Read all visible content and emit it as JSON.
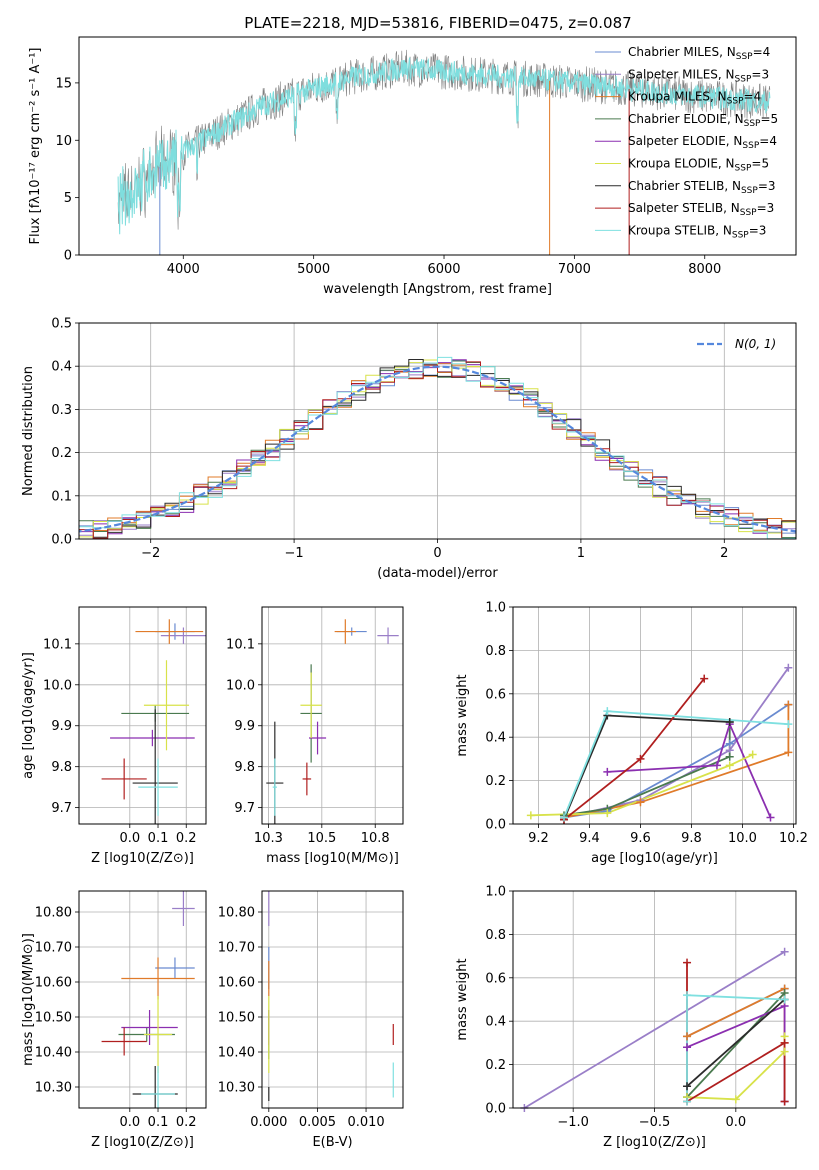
{
  "figure": {
    "title": "PLATE=2218, MJD=53816, FIBERID=0475, z=0.087"
  },
  "colors": {
    "series": [
      "#6a8bd0",
      "#9a7fc8",
      "#e07b2a",
      "#4a7a4f",
      "#8b2fb0",
      "#d8e24a",
      "#2b2b2b",
      "#b01f1f",
      "#7fe0e0"
    ],
    "spectrum_gray": "#808080",
    "spectrum_cyan": "#7fdede",
    "normal": "#5588dd",
    "grid": "#b0b0b0"
  },
  "chart_data": [
    {
      "id": "spectrum",
      "type": "line",
      "xlabel": "wavelength [Angstrom, rest frame]",
      "ylabel": "Flux [fλ10⁻¹⁷ erg cm⁻² s⁻¹ A⁻¹]",
      "xlim": [
        3200,
        8700
      ],
      "ylim": [
        0,
        19
      ],
      "xticks": [
        4000,
        5000,
        6000,
        7000,
        8000
      ],
      "yticks": [
        0,
        5,
        10,
        15
      ],
      "grid": false,
      "legend_position": "upper-right",
      "legend": [
        "Chabrier MILES, N_SSP=4",
        "Salpeter MILES, N_SSP=3",
        "Kroupa MILES, N_SSP=4",
        "Chabrier ELODIE, N_SSP=5",
        "Salpeter ELODIE, N_SSP=4",
        "Kroupa ELODIE, N_SSP=5",
        "Chabrier STELIB, N_SSP=3",
        "Salpeter STELIB, N_SSP=3",
        "Kroupa STELIB, N_SSP=3"
      ],
      "continuum_x": [
        3500,
        3800,
        4000,
        4300,
        4600,
        5000,
        5300,
        5700,
        6000,
        6500,
        7000,
        7400,
        7800,
        8200,
        8500
      ],
      "continuum_y": [
        4.5,
        7.5,
        9.0,
        11.0,
        13.0,
        14.5,
        15.5,
        16.3,
        16.0,
        15.5,
        15.0,
        14.5,
        14.0,
        13.6,
        13.3
      ]
    },
    {
      "id": "residuals",
      "type": "line",
      "xlabel": "(data-model)/error",
      "ylabel": "Normed distribution",
      "xlim": [
        -2.5,
        2.5
      ],
      "ylim": [
        0,
        0.5
      ],
      "xticks": [
        -2,
        -1,
        0,
        1,
        2
      ],
      "yticks": [
        0.0,
        0.1,
        0.2,
        0.3,
        0.4,
        0.5
      ],
      "grid": true,
      "legend_position": "upper-right",
      "normal_label": "N(0, 1)"
    },
    {
      "id": "age_vs_Z",
      "type": "scatter",
      "xlabel": "Z [log10(Z/Z⊙)]",
      "ylabel": "age  [log10(age/yr)]",
      "xlim": [
        -0.18,
        0.27
      ],
      "ylim": [
        9.66,
        10.19
      ],
      "xticks": [
        0.0,
        0.1,
        0.2
      ],
      "yticks": [
        9.7,
        9.8,
        9.9,
        10.0,
        10.1
      ],
      "grid": true,
      "points": [
        {
          "s": 0,
          "x": 0.16,
          "y": 10.13,
          "xerr": 0.07,
          "yerr": 0.02
        },
        {
          "s": 1,
          "x": 0.19,
          "y": 10.12,
          "xerr": 0.08,
          "yerr": 0.02
        },
        {
          "s": 2,
          "x": 0.14,
          "y": 10.13,
          "xerr": 0.12,
          "yerr": 0.03
        },
        {
          "s": 3,
          "x": 0.09,
          "y": 9.93,
          "xerr": 0.12,
          "yerr": 0.02
        },
        {
          "s": 4,
          "x": 0.08,
          "y": 9.87,
          "xerr": 0.15,
          "yerr": 0.02
        },
        {
          "s": 5,
          "x": 0.13,
          "y": 9.95,
          "xerr": 0.08,
          "yerr": 0.11
        },
        {
          "s": 6,
          "x": 0.09,
          "y": 9.76,
          "xerr": 0.08,
          "yerr": 0.18
        },
        {
          "s": 7,
          "x": -0.02,
          "y": 9.77,
          "xerr": 0.08,
          "yerr": 0.05
        },
        {
          "s": 8,
          "x": 0.1,
          "y": 9.75,
          "xerr": 0.07,
          "yerr": 0.07
        }
      ]
    },
    {
      "id": "age_vs_mass",
      "type": "scatter",
      "xlabel": "mass [log10(M/M⊙)]",
      "ylabel": "",
      "xlim": [
        10.22,
        10.88
      ],
      "ylim": [
        9.66,
        10.19
      ],
      "xticks": [
        10.25,
        10.5,
        10.75
      ],
      "yticks": [
        9.7,
        9.8,
        9.9,
        10.0,
        10.1
      ],
      "grid": true,
      "points": [
        {
          "s": 0,
          "x": 10.64,
          "y": 10.13,
          "xerr": 0.07,
          "yerr": 0.01
        },
        {
          "s": 1,
          "x": 10.81,
          "y": 10.12,
          "xerr": 0.05,
          "yerr": 0.02
        },
        {
          "s": 2,
          "x": 10.61,
          "y": 10.13,
          "xerr": 0.05,
          "yerr": 0.03
        },
        {
          "s": 3,
          "x": 10.45,
          "y": 9.93,
          "xerr": 0.05,
          "yerr": 0.12
        },
        {
          "s": 4,
          "x": 10.48,
          "y": 9.87,
          "xerr": 0.04,
          "yerr": 0.04
        },
        {
          "s": 5,
          "x": 10.45,
          "y": 9.95,
          "xerr": 0.05,
          "yerr": 0.08
        },
        {
          "s": 6,
          "x": 10.28,
          "y": 9.76,
          "xerr": 0.04,
          "yerr": 0.15
        },
        {
          "s": 7,
          "x": 10.43,
          "y": 9.77,
          "xerr": 0.02,
          "yerr": 0.04
        },
        {
          "s": 8,
          "x": 10.28,
          "y": 9.75,
          "xerr": 0.01,
          "yerr": 0.07
        }
      ]
    },
    {
      "id": "mass_weight_vs_age",
      "type": "line",
      "xlabel": "age  [log10(age/yr)]",
      "ylabel": "mass weight",
      "xlim": [
        9.1,
        10.21
      ],
      "ylim": [
        0.0,
        1.0
      ],
      "xticks": [
        9.2,
        9.4,
        9.6,
        9.8,
        10.0,
        10.2
      ],
      "yticks": [
        0.0,
        0.2,
        0.4,
        0.6,
        0.8,
        1.0
      ],
      "grid": true,
      "series": [
        {
          "s": 0,
          "x": [
            9.3,
            9.47,
            9.95,
            10.18
          ],
          "y": [
            0.03,
            0.06,
            0.37,
            0.55
          ]
        },
        {
          "s": 1,
          "x": [
            9.3,
            9.6,
            9.95,
            10.18
          ],
          "y": [
            0.03,
            0.11,
            0.34,
            0.72
          ]
        },
        {
          "s": 2,
          "x": [
            9.3,
            9.6,
            10.18,
            10.18
          ],
          "y": [
            0.03,
            0.1,
            0.33,
            0.55
          ]
        },
        {
          "s": 3,
          "x": [
            9.3,
            9.47,
            9.95,
            9.95
          ],
          "y": [
            0.04,
            0.07,
            0.31,
            0.47
          ]
        },
        {
          "s": 4,
          "x": [
            9.47,
            9.9,
            9.95,
            10.11
          ],
          "y": [
            0.24,
            0.27,
            0.46,
            0.03
          ]
        },
        {
          "s": 5,
          "x": [
            9.17,
            9.47,
            9.95,
            10.04
          ],
          "y": [
            0.04,
            0.05,
            0.27,
            0.32
          ]
        },
        {
          "s": 6,
          "x": [
            9.3,
            9.47,
            9.95
          ],
          "y": [
            0.02,
            0.5,
            0.47
          ]
        },
        {
          "s": 7,
          "x": [
            9.3,
            9.6,
            9.85
          ],
          "y": [
            0.02,
            0.3,
            0.67
          ]
        },
        {
          "s": 8,
          "x": [
            9.3,
            9.47,
            10.18
          ],
          "y": [
            0.03,
            0.52,
            0.46
          ]
        }
      ]
    },
    {
      "id": "mass_vs_Z",
      "type": "scatter",
      "xlabel": "Z [log10(Z/Z⊙)]",
      "ylabel": "mass [log10(M/M⊙)]",
      "xlim": [
        -0.18,
        0.27
      ],
      "ylim": [
        10.24,
        10.86
      ],
      "xticks": [
        0.0,
        0.1,
        0.2
      ],
      "yticks": [
        10.3,
        10.4,
        10.5,
        10.6,
        10.7,
        10.8
      ],
      "grid": true,
      "points": [
        {
          "s": 0,
          "x": 0.16,
          "y": 10.64,
          "xerr": 0.07,
          "yerr": 0.03
        },
        {
          "s": 1,
          "x": 0.19,
          "y": 10.81,
          "xerr": 0.04,
          "yerr": 0.05
        },
        {
          "s": 2,
          "x": 0.1,
          "y": 10.61,
          "xerr": 0.13,
          "yerr": 0.06
        },
        {
          "s": 3,
          "x": 0.06,
          "y": 10.45,
          "xerr": 0.1,
          "yerr": 0.02
        },
        {
          "s": 4,
          "x": 0.07,
          "y": 10.47,
          "xerr": 0.1,
          "yerr": 0.05
        },
        {
          "s": 5,
          "x": 0.1,
          "y": 10.45,
          "xerr": 0.05,
          "yerr": 0.11
        },
        {
          "s": 6,
          "x": 0.09,
          "y": 10.28,
          "xerr": 0.08,
          "yerr": 0.08
        },
        {
          "s": 7,
          "x": -0.02,
          "y": 10.43,
          "xerr": 0.08,
          "yerr": 0.04
        },
        {
          "s": 8,
          "x": 0.1,
          "y": 10.28,
          "xerr": 0.06,
          "yerr": 0.08
        }
      ]
    },
    {
      "id": "mass_vs_ebv",
      "type": "scatter",
      "xlabel": "E(B-V)",
      "ylabel": "",
      "xlim": [
        -0.0007,
        0.0138
      ],
      "ylim": [
        10.24,
        10.86
      ],
      "xticks": [
        0.0,
        0.005,
        0.01
      ],
      "yticks": [
        10.3,
        10.4,
        10.5,
        10.6,
        10.7,
        10.8
      ],
      "grid": true,
      "points": [
        {
          "s": 0,
          "x": 0.0,
          "y": 10.64,
          "xerr": 0.0,
          "yerr": 0.06
        },
        {
          "s": 1,
          "x": 0.0,
          "y": 10.81,
          "xerr": 0.0,
          "yerr": 0.05
        },
        {
          "s": 2,
          "x": 0.0,
          "y": 10.61,
          "xerr": 0.0,
          "yerr": 0.05
        },
        {
          "s": 3,
          "x": 0.0,
          "y": 10.45,
          "xerr": 0.0,
          "yerr": 0.07
        },
        {
          "s": 4,
          "x": 0.0,
          "y": 10.47,
          "xerr": 0.0,
          "yerr": 0.05
        },
        {
          "s": 5,
          "x": 0.0,
          "y": 10.45,
          "xerr": 0.0,
          "yerr": 0.11
        },
        {
          "s": 6,
          "x": 0.0,
          "y": 10.28,
          "xerr": 0.0,
          "yerr": 0.02
        },
        {
          "s": 7,
          "x": 0.0128,
          "y": 10.45,
          "xerr": 0.0,
          "yerr": 0.03
        },
        {
          "s": 8,
          "x": 0.0128,
          "y": 10.32,
          "xerr": 0.0,
          "yerr": 0.05
        }
      ]
    },
    {
      "id": "mass_weight_vs_Z",
      "type": "line",
      "xlabel": "Z [log10(Z/Z⊙)]",
      "ylabel": "mass weight",
      "xlim": [
        -1.37,
        0.37
      ],
      "ylim": [
        0.0,
        1.0
      ],
      "xticks": [
        -1.0,
        -0.5,
        0.0
      ],
      "yticks": [
        0.0,
        0.2,
        0.4,
        0.6,
        0.8,
        1.0
      ],
      "grid": true,
      "series": [
        {
          "s": 0,
          "x": [
            -0.3,
            -0.3,
            0.3
          ],
          "y": [
            0.05,
            0.33,
            0.55
          ]
        },
        {
          "s": 1,
          "x": [
            -1.3,
            0.3
          ],
          "y": [
            0.0,
            0.72
          ]
        },
        {
          "s": 2,
          "x": [
            -0.3,
            0.3,
            0.3
          ],
          "y": [
            0.33,
            0.55,
            0.3
          ]
        },
        {
          "s": 3,
          "x": [
            -0.3,
            0.3
          ],
          "y": [
            0.05,
            0.53
          ]
        },
        {
          "s": 4,
          "x": [
            -0.3,
            0.3,
            0.3
          ],
          "y": [
            0.28,
            0.47,
            0.03
          ]
        },
        {
          "s": 5,
          "x": [
            -0.3,
            0.0,
            0.3,
            0.3
          ],
          "y": [
            0.05,
            0.04,
            0.26,
            0.33
          ]
        },
        {
          "s": 6,
          "x": [
            -0.3,
            0.3
          ],
          "y": [
            0.1,
            0.5
          ]
        },
        {
          "s": 7,
          "x": [
            -0.3,
            -0.3,
            0.3,
            0.3
          ],
          "y": [
            0.67,
            0.03,
            0.3,
            0.03
          ]
        },
        {
          "s": 8,
          "x": [
            -0.3,
            -0.3,
            0.3
          ],
          "y": [
            0.03,
            0.52,
            0.5
          ]
        }
      ]
    }
  ]
}
